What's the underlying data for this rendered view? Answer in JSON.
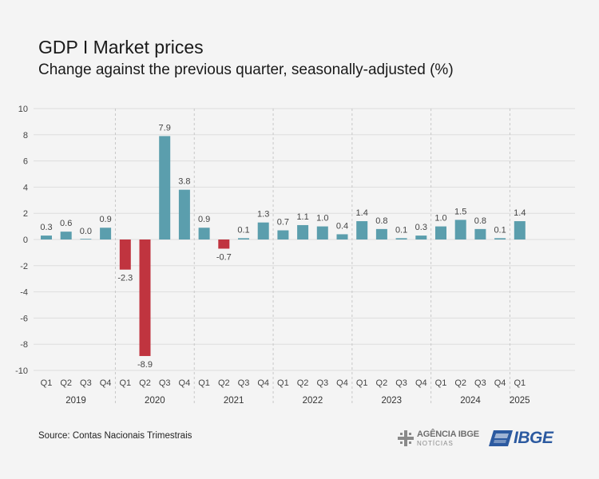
{
  "title": "GDP I Market prices",
  "subtitle": "Change against the previous quarter, seasonally-adjusted (%)",
  "source": "Source: Contas Nacionais Trimestrais",
  "logos": {
    "agencia_line1": "AGÊNCIA IBGE",
    "agencia_line2": "NOTÍCIAS",
    "ibge": "IBGE"
  },
  "colors": {
    "positive": "#5b9ead",
    "negative": "#c0343f",
    "grid": "#dddddd",
    "text": "#444444"
  },
  "chart_data": {
    "type": "bar",
    "title": "GDP I Market prices",
    "subtitle": "Change against the previous quarter, seasonally-adjusted (%)",
    "ylim": [
      -10,
      10
    ],
    "yticks": [
      10,
      8,
      6,
      4,
      2,
      0,
      -2,
      -4,
      -6,
      -8,
      -10
    ],
    "grid": true,
    "legend": "none",
    "groups": [
      {
        "year": "2019",
        "quarters": [
          "Q1",
          "Q2",
          "Q3",
          "Q4"
        ],
        "values": [
          0.3,
          0.6,
          0.0,
          0.9
        ],
        "labels": [
          "0.3",
          "0.6",
          "0.0",
          "0.9"
        ]
      },
      {
        "year": "2020",
        "quarters": [
          "Q1",
          "Q2",
          "Q3",
          "Q4"
        ],
        "values": [
          -2.3,
          -8.9,
          7.9,
          3.8
        ],
        "labels": [
          "-2.3",
          "-8.9",
          "7.9",
          "3.8"
        ]
      },
      {
        "year": "2021",
        "quarters": [
          "Q1",
          "Q2",
          "Q3",
          "Q4"
        ],
        "values": [
          0.9,
          -0.7,
          0.1,
          1.3
        ],
        "labels": [
          "0.9",
          "-0.7",
          "0.1",
          "1.3"
        ]
      },
      {
        "year": "2022",
        "quarters": [
          "Q1",
          "Q2",
          "Q3",
          "Q4"
        ],
        "values": [
          0.7,
          1.1,
          1.0,
          0.4
        ],
        "labels": [
          "0.7",
          "1.1",
          "1.0",
          "0.4"
        ]
      },
      {
        "year": "2023",
        "quarters": [
          "Q1",
          "Q2",
          "Q3",
          "Q4"
        ],
        "values": [
          1.4,
          0.8,
          0.1,
          0.3
        ],
        "labels": [
          "1.4",
          "0.8",
          "0.1",
          "0.3"
        ]
      },
      {
        "year": "2024",
        "quarters": [
          "Q1",
          "Q2",
          "Q3",
          "Q4"
        ],
        "values": [
          1.0,
          1.5,
          0.8,
          0.1
        ],
        "labels": [
          "1.0",
          "1.5",
          "0.8",
          "0.1"
        ]
      },
      {
        "year": "2025",
        "quarters": [
          "Q1"
        ],
        "values": [
          1.4
        ],
        "labels": [
          "1.4"
        ]
      }
    ]
  }
}
